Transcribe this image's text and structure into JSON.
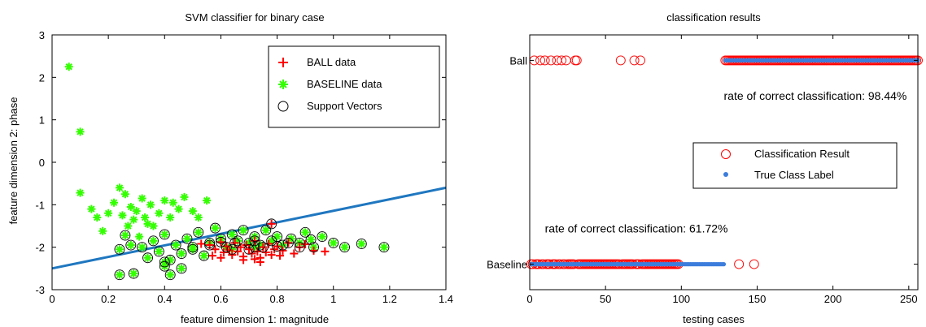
{
  "chart_data": [
    {
      "type": "scatter",
      "title": "SVM classifier for binary case",
      "xlabel": "feature dimension 1: magnitude",
      "ylabel": "feature dimension 2: phase",
      "xlim": [
        0,
        1.4
      ],
      "ylim": [
        -3,
        3
      ],
      "xticks": [
        0,
        0.2,
        0.4,
        0.6,
        0.8,
        1,
        1.2,
        1.4
      ],
      "xtick_labels": [
        "0",
        "0.2",
        "0.4",
        "0.6",
        "0.8",
        "1",
        "1.2",
        "1.4"
      ],
      "yticks": [
        3,
        2,
        1,
        0,
        -1,
        -2,
        -3
      ],
      "ytick_labels": [
        "3",
        "2",
        "1",
        "0",
        "-1",
        "-2",
        "-3"
      ],
      "grid": false,
      "legend_position": "top-right",
      "legend": [
        "BALL data",
        "BASELINE data",
        "Support Vectors"
      ],
      "colors": {
        "ball": "#ff0000",
        "baseline": "#33ff00",
        "support": "#000000",
        "boundary": "#1f77c0"
      },
      "boundary_line": [
        [
          0,
          -2.5
        ],
        [
          1.4,
          -0.6
        ]
      ],
      "series": [
        {
          "name": "BALL data",
          "points": [
            [
              0.53,
              -1.92
            ],
            [
              0.56,
              -1.95
            ],
            [
              0.58,
              -2.05
            ],
            [
              0.6,
              -1.88
            ],
            [
              0.61,
              -2.12
            ],
            [
              0.62,
              -1.98
            ],
            [
              0.63,
              -2.07
            ],
            [
              0.64,
              -2.18
            ],
            [
              0.65,
              -1.9
            ],
            [
              0.66,
              -2.1
            ],
            [
              0.67,
              -2.0
            ],
            [
              0.68,
              -2.22
            ],
            [
              0.69,
              -1.95
            ],
            [
              0.7,
              -2.05
            ],
            [
              0.71,
              -2.15
            ],
            [
              0.72,
              -1.85
            ],
            [
              0.73,
              -2.1
            ],
            [
              0.74,
              -2.25
            ],
            [
              0.75,
              -2.0
            ],
            [
              0.76,
              -2.12
            ],
            [
              0.77,
              -1.92
            ],
            [
              0.78,
              -2.18
            ],
            [
              0.79,
              -2.05
            ],
            [
              0.8,
              -1.98
            ],
            [
              0.81,
              -2.2
            ],
            [
              0.82,
              -2.08
            ],
            [
              0.84,
              -1.9
            ],
            [
              0.86,
              -2.15
            ],
            [
              0.88,
              -2.0
            ],
            [
              0.9,
              -1.93
            ],
            [
              0.93,
              -2.08
            ],
            [
              0.97,
              -2.1
            ],
            [
              0.68,
              -2.3
            ],
            [
              0.72,
              -2.28
            ],
            [
              0.74,
              -2.35
            ],
            [
              0.78,
              -1.45
            ],
            [
              0.6,
              -2.25
            ],
            [
              0.57,
              -2.2
            ]
          ]
        },
        {
          "name": "BASELINE data",
          "points": [
            [
              0.06,
              2.25
            ],
            [
              0.1,
              0.72
            ],
            [
              0.1,
              -0.72
            ],
            [
              0.14,
              -1.1
            ],
            [
              0.16,
              -1.3
            ],
            [
              0.18,
              -1.62
            ],
            [
              0.2,
              -1.2
            ],
            [
              0.22,
              -0.95
            ],
            [
              0.24,
              -0.6
            ],
            [
              0.25,
              -1.25
            ],
            [
              0.26,
              -0.75
            ],
            [
              0.28,
              -1.05
            ],
            [
              0.29,
              -1.35
            ],
            [
              0.3,
              -1.15
            ],
            [
              0.32,
              -0.85
            ],
            [
              0.33,
              -1.3
            ],
            [
              0.35,
              -1.0
            ],
            [
              0.36,
              -1.5
            ],
            [
              0.38,
              -1.2
            ],
            [
              0.4,
              -0.9
            ],
            [
              0.42,
              -1.3
            ],
            [
              0.43,
              -0.95
            ],
            [
              0.45,
              -1.1
            ],
            [
              0.47,
              -0.82
            ],
            [
              0.5,
              -1.15
            ],
            [
              0.52,
              -1.3
            ],
            [
              0.55,
              -0.9
            ],
            [
              0.27,
              -1.5
            ],
            [
              0.31,
              -1.75
            ],
            [
              0.34,
              -1.45
            ],
            [
              0.24,
              -2.05
            ],
            [
              0.26,
              -1.72
            ],
            [
              0.28,
              -1.95
            ],
            [
              0.32,
              -2.0
            ],
            [
              0.34,
              -2.25
            ],
            [
              0.36,
              -1.85
            ],
            [
              0.38,
              -2.1
            ],
            [
              0.4,
              -1.7
            ],
            [
              0.42,
              -2.3
            ],
            [
              0.44,
              -1.95
            ],
            [
              0.46,
              -2.15
            ],
            [
              0.48,
              -1.8
            ],
            [
              0.5,
              -2.05
            ],
            [
              0.52,
              -1.65
            ],
            [
              0.54,
              -2.2
            ],
            [
              0.56,
              -1.9
            ],
            [
              0.58,
              -1.55
            ],
            [
              0.6,
              -1.8
            ],
            [
              0.62,
              -2.0
            ],
            [
              0.64,
              -1.7
            ],
            [
              0.66,
              -1.85
            ],
            [
              0.68,
              -1.6
            ],
            [
              0.7,
              -1.9
            ],
            [
              0.72,
              -1.75
            ],
            [
              0.74,
              -1.95
            ],
            [
              0.76,
              -1.6
            ],
            [
              0.78,
              -1.85
            ],
            [
              0.8,
              -1.75
            ],
            [
              0.82,
              -1.95
            ],
            [
              0.85,
              -1.8
            ],
            [
              0.88,
              -1.9
            ],
            [
              0.9,
              -1.65
            ],
            [
              0.93,
              -2.0
            ],
            [
              0.96,
              -1.75
            ],
            [
              1.0,
              -1.9
            ],
            [
              1.04,
              -2.0
            ],
            [
              1.1,
              -1.92
            ],
            [
              1.18,
              -2.0
            ],
            [
              0.24,
              -2.65
            ],
            [
              0.29,
              -2.62
            ],
            [
              0.4,
              -2.35
            ],
            [
              0.4,
              -2.45
            ],
            [
              0.42,
              -2.65
            ],
            [
              0.46,
              -2.5
            ],
            [
              0.5,
              -2.0
            ],
            [
              0.64,
              -2.05
            ],
            [
              0.72,
              -2.0
            ],
            [
              0.92,
              -1.82
            ]
          ]
        },
        {
          "name": "Support Vectors",
          "points": [
            [
              0.24,
              -2.05
            ],
            [
              0.26,
              -1.72
            ],
            [
              0.28,
              -1.95
            ],
            [
              0.32,
              -2.0
            ],
            [
              0.34,
              -2.25
            ],
            [
              0.36,
              -1.85
            ],
            [
              0.38,
              -2.1
            ],
            [
              0.4,
              -1.7
            ],
            [
              0.42,
              -2.3
            ],
            [
              0.44,
              -1.95
            ],
            [
              0.46,
              -2.15
            ],
            [
              0.48,
              -1.8
            ],
            [
              0.5,
              -2.05
            ],
            [
              0.52,
              -1.65
            ],
            [
              0.54,
              -2.2
            ],
            [
              0.56,
              -1.9
            ],
            [
              0.58,
              -1.55
            ],
            [
              0.6,
              -1.8
            ],
            [
              0.62,
              -2.0
            ],
            [
              0.64,
              -1.7
            ],
            [
              0.66,
              -1.85
            ],
            [
              0.68,
              -1.6
            ],
            [
              0.7,
              -1.9
            ],
            [
              0.72,
              -1.75
            ],
            [
              0.74,
              -1.95
            ],
            [
              0.76,
              -1.6
            ],
            [
              0.78,
              -1.85
            ],
            [
              0.8,
              -1.75
            ],
            [
              0.82,
              -1.95
            ],
            [
              0.85,
              -1.8
            ],
            [
              0.88,
              -1.9
            ],
            [
              0.9,
              -1.65
            ],
            [
              0.93,
              -2.0
            ],
            [
              0.96,
              -1.75
            ],
            [
              1.0,
              -1.9
            ],
            [
              1.04,
              -2.0
            ],
            [
              1.1,
              -1.92
            ],
            [
              1.18,
              -2.0
            ],
            [
              0.24,
              -2.65
            ],
            [
              0.29,
              -2.62
            ],
            [
              0.4,
              -2.35
            ],
            [
              0.4,
              -2.45
            ],
            [
              0.42,
              -2.65
            ],
            [
              0.46,
              -2.5
            ],
            [
              0.5,
              -2.0
            ],
            [
              0.64,
              -2.05
            ],
            [
              0.72,
              -2.0
            ],
            [
              0.92,
              -1.82
            ],
            [
              0.6,
              -1.88
            ],
            [
              0.65,
              -1.9
            ],
            [
              0.7,
              -2.05
            ],
            [
              0.75,
              -2.0
            ],
            [
              0.78,
              -1.45
            ],
            [
              0.8,
              -1.98
            ],
            [
              0.84,
              -1.9
            ],
            [
              0.88,
              -2.0
            ],
            [
              0.56,
              -1.95
            ],
            [
              0.72,
              -1.85
            ]
          ]
        }
      ]
    },
    {
      "type": "scatter",
      "title": "classification results",
      "xlabel": "testing cases",
      "ylabel": "",
      "xlim": [
        0,
        256
      ],
      "ylim": [
        0,
        1
      ],
      "xticks": [
        0,
        50,
        100,
        150,
        200,
        250
      ],
      "xtick_labels": [
        "0",
        "50",
        "100",
        "150",
        "200",
        "250"
      ],
      "category_axis": [
        "Baseline",
        "Ball"
      ],
      "category_values": [
        0.1,
        0.9
      ],
      "grid": false,
      "legend_position": "center-right",
      "legend": [
        "Classification Result",
        "True Class Label"
      ],
      "colors": {
        "result": "#ff0000",
        "true_label": "#3c7ddc"
      },
      "annotations": [
        {
          "text": "rate of correct classification: 98.44%",
          "x": 128,
          "y": 0.745
        },
        {
          "text": "rate of correct classification: 61.72%",
          "x": 10,
          "y": 0.225
        }
      ],
      "series": [
        {
          "name": "Classification Result",
          "ball_predicted_in_baseline_cases": [
            3,
            7,
            10,
            14,
            18,
            21,
            24,
            30,
            31,
            60,
            69,
            73
          ],
          "baseline_predicted_in_ball_cases": [
            138,
            148
          ],
          "ball_range_remaining": [
            129,
            256
          ],
          "baseline_range_remaining": [
            1,
            98
          ]
        },
        {
          "name": "True Class Label",
          "baseline_range": [
            1,
            128
          ],
          "ball_range": [
            129,
            256
          ]
        }
      ]
    }
  ]
}
